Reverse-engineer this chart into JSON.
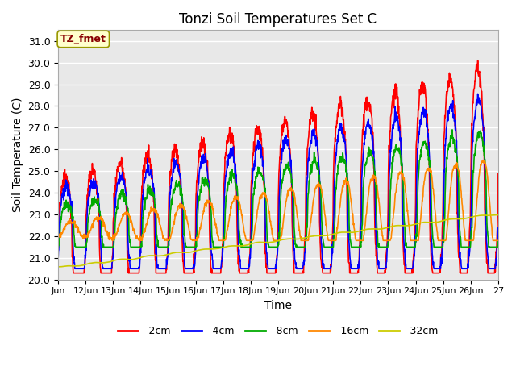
{
  "title": "Tonzi Soil Temperatures Set C",
  "xlabel": "Time",
  "ylabel": "Soil Temperature (C)",
  "ylim": [
    20.0,
    31.5
  ],
  "yticks": [
    20.0,
    21.0,
    22.0,
    23.0,
    24.0,
    25.0,
    26.0,
    27.0,
    28.0,
    29.0,
    30.0,
    31.0
  ],
  "xtick_labels": [
    "Jun",
    "12Jun",
    "13Jun",
    "14Jun",
    "15Jun",
    "16Jun",
    "17Jun",
    "18Jun",
    "19Jun",
    "20Jun",
    "21Jun",
    "22Jun",
    "23Jun",
    "24Jun",
    "25Jun",
    "26Jun",
    "27"
  ],
  "annotation_text": "TZ_fmet",
  "annotation_bg": "#ffffcc",
  "annotation_border": "#999900",
  "annotation_text_color": "#880000",
  "plot_bg": "#e8e8e8",
  "fig_bg": "#ffffff",
  "line_colors": [
    "#ff0000",
    "#0000ff",
    "#00aa00",
    "#ff8800",
    "#cccc00"
  ],
  "line_labels": [
    "-2cm",
    "-4cm",
    "-8cm",
    "-16cm",
    "-32cm"
  ],
  "line_width": 1.2,
  "n_days": 16,
  "points_per_day": 96
}
